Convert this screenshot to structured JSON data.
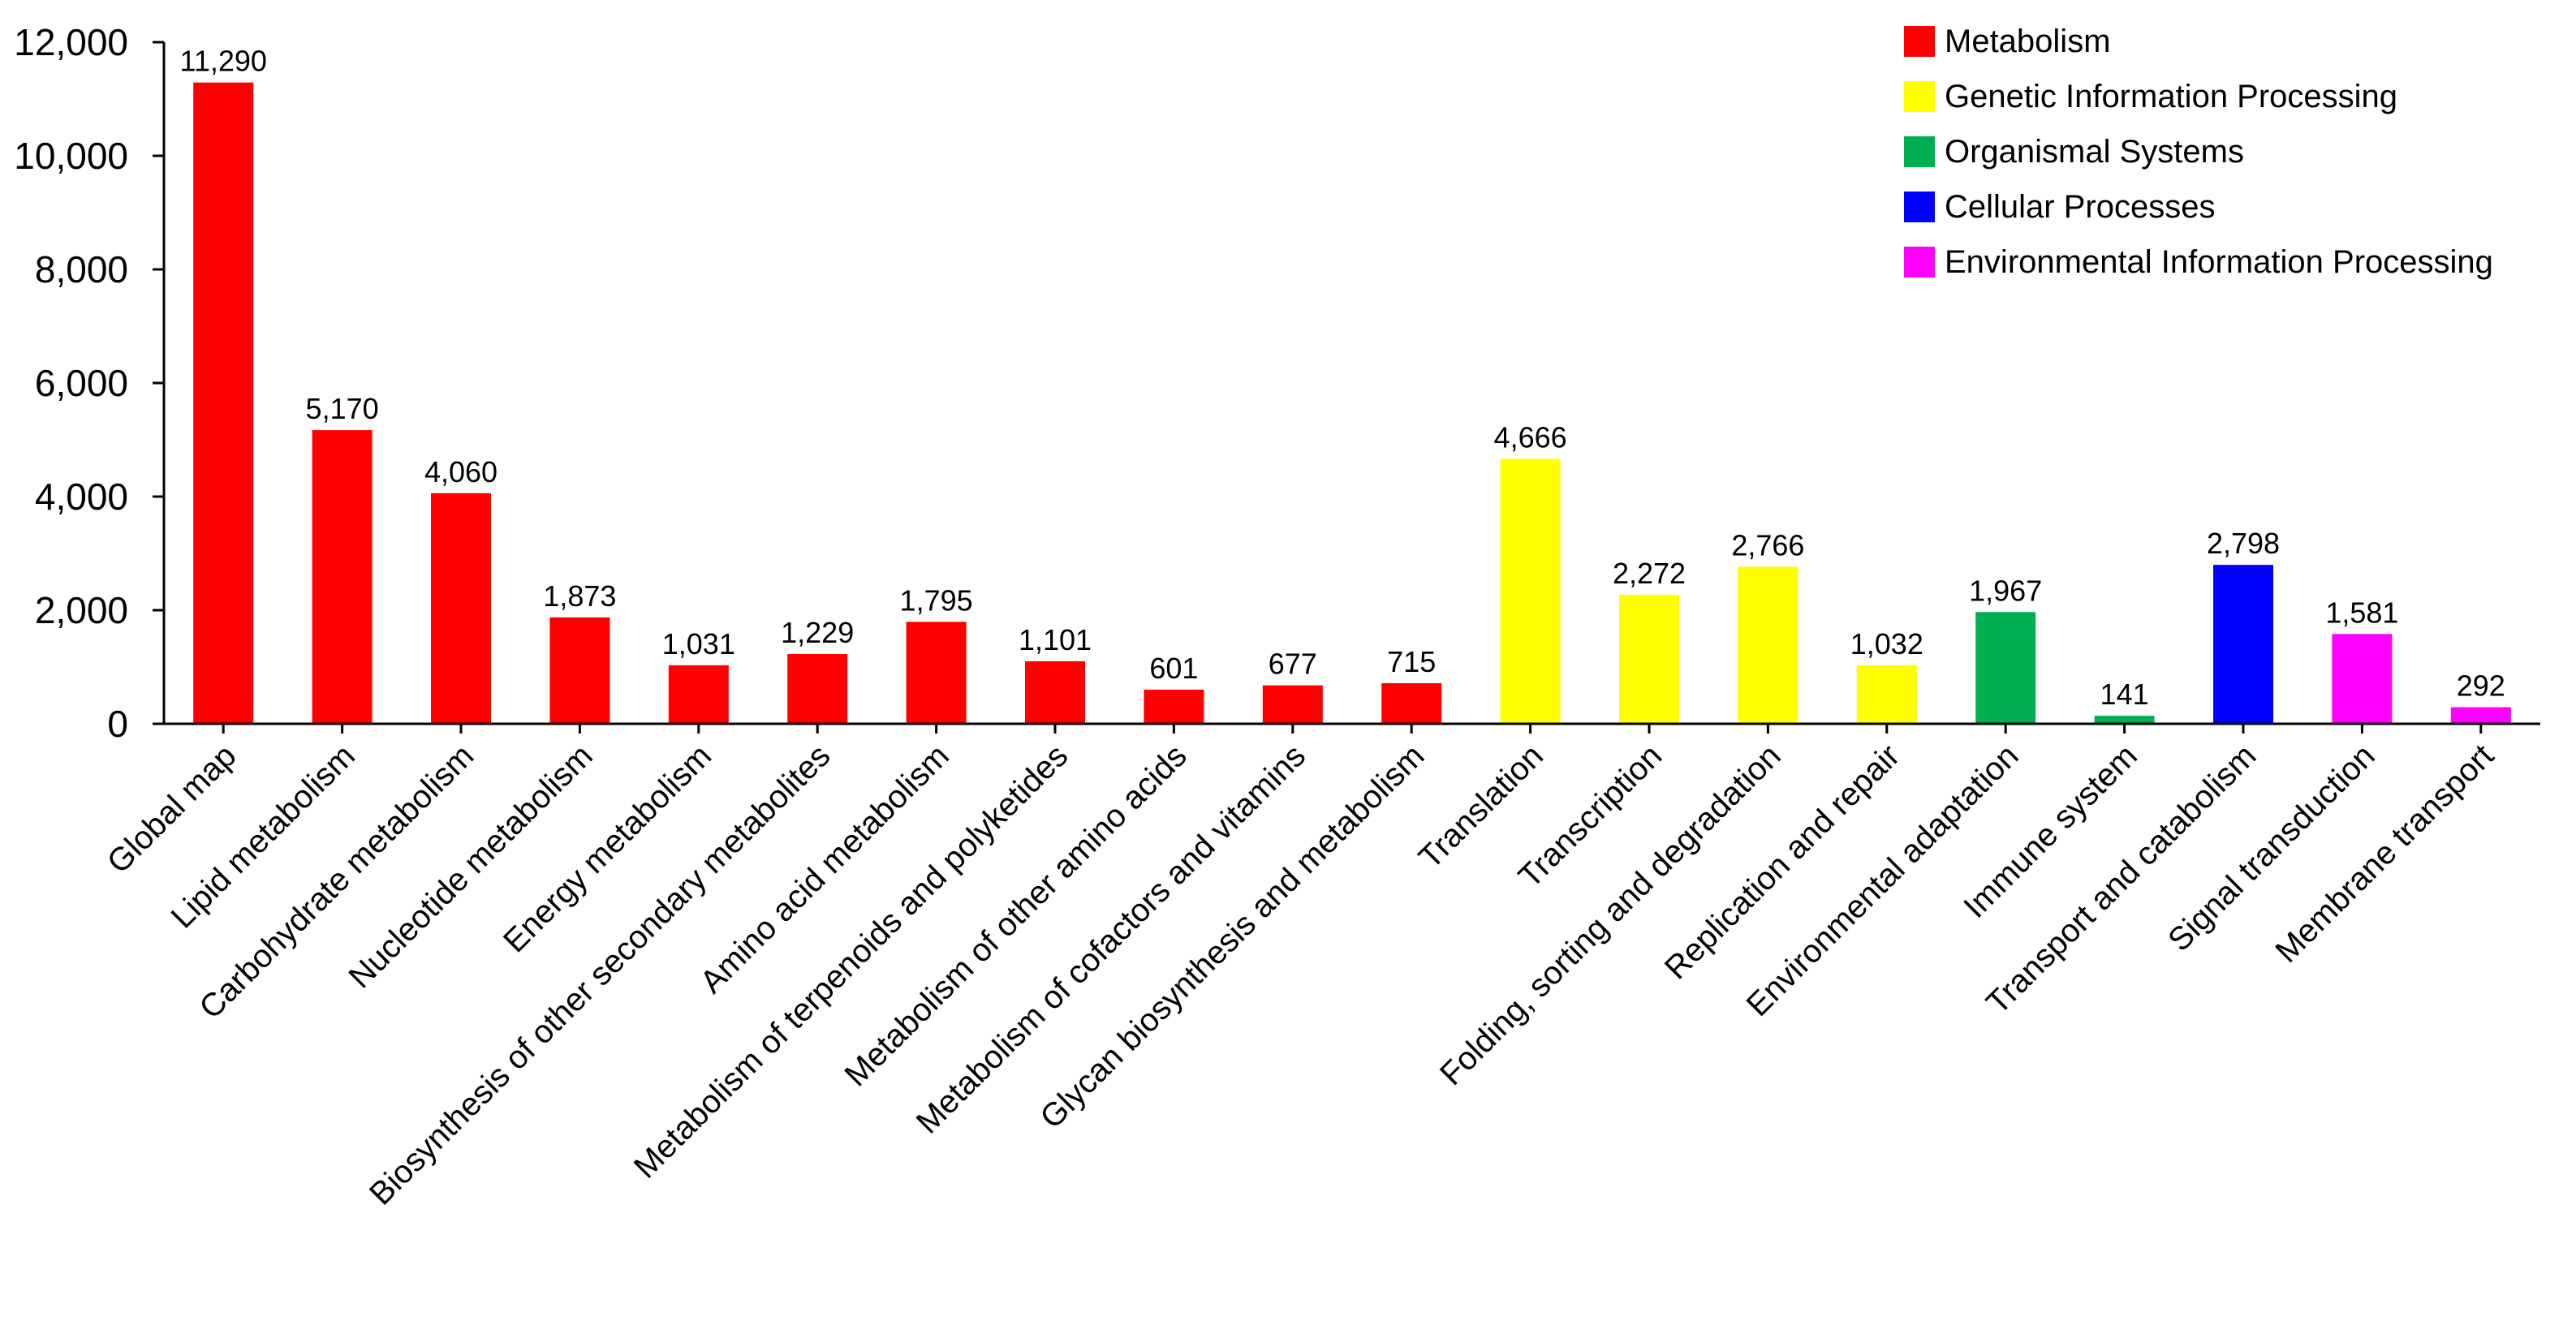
{
  "chart_data": {
    "type": "bar",
    "title": "",
    "xlabel": "",
    "ylabel": "",
    "ylim": [
      0,
      12000
    ],
    "yticks": [
      0,
      2000,
      4000,
      6000,
      8000,
      10000,
      12000
    ],
    "ytick_labels": [
      "0",
      "2,000",
      "4,000",
      "6,000",
      "8,000",
      "10,000",
      "12,000"
    ],
    "grid": false,
    "legend_position": "top-right",
    "groups": [
      {
        "name": "Metabolism",
        "color": "#ff0000"
      },
      {
        "name": "Genetic Information Processing",
        "color": "#ffff00"
      },
      {
        "name": "Organismal Systems",
        "color": "#00b050"
      },
      {
        "name": "Cellular Processes",
        "color": "#0000ff"
      },
      {
        "name": "Environmental Information Processing",
        "color": "#ff00ff"
      }
    ],
    "categories": [
      "Global map",
      "Lipid metabolism",
      "Carbohydrate metabolism",
      "Nucleotide metabolism",
      "Energy metabolism",
      "Biosynthesis of other secondary metabolites",
      "Amino acid metabolism",
      "Metabolism of terpenoids and polyketides",
      "Metabolism of other amino acids",
      "Metabolism of cofactors and vitamins",
      "Glycan biosynthesis and metabolism",
      "Translation",
      "Transcription",
      "Folding, sorting and degradation",
      "Replication and repair",
      "Environmental adaptation",
      "Immune system",
      "Transport and catabolism",
      "Signal transduction",
      "Membrane transport"
    ],
    "values": [
      11290,
      5170,
      4060,
      1873,
      1031,
      1229,
      1795,
      1101,
      601,
      677,
      715,
      4666,
      2272,
      2766,
      1032,
      1967,
      141,
      2798,
      1581,
      292
    ],
    "value_labels": [
      "11,290",
      "5,170",
      "4,060",
      "1,873",
      "1,031",
      "1,229",
      "1,795",
      "1,101",
      "601",
      "677",
      "715",
      "4,666",
      "2,272",
      "2,766",
      "1,032",
      "1,967",
      "141",
      "2,798",
      "1,581",
      "292"
    ],
    "group_index": [
      0,
      0,
      0,
      0,
      0,
      0,
      0,
      0,
      0,
      0,
      0,
      1,
      1,
      1,
      1,
      2,
      2,
      3,
      4,
      4
    ]
  }
}
